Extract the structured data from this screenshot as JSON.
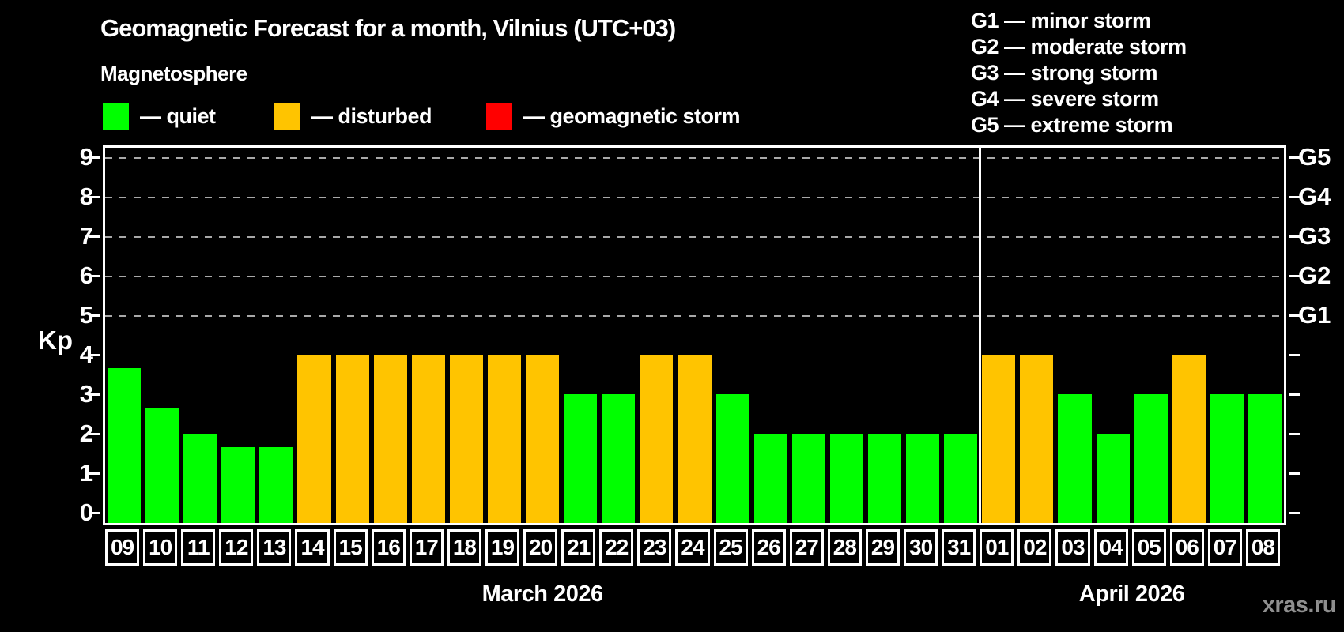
{
  "header": {
    "title": "Geomagnetic Forecast for a month, Vilnius (UTC+03)",
    "subtitle": "Magnetosphere"
  },
  "legend": {
    "items": [
      {
        "key": "quiet",
        "label": "— quiet",
        "color": "#00ff00"
      },
      {
        "key": "disturbed",
        "label": "— disturbed",
        "color": "#ffc400"
      },
      {
        "key": "storm",
        "label": "— geomagnetic storm",
        "color": "#ff0000"
      }
    ]
  },
  "g_scale_legend": {
    "lines": [
      "G1 — minor storm",
      "G2 — moderate storm",
      "G3 — strong storm",
      "G4 — severe storm",
      "G5 — extreme storm"
    ]
  },
  "status_colors": {
    "quiet": "#00ff00",
    "disturbed": "#ffc400",
    "storm": "#ff0000"
  },
  "chart_data": {
    "type": "bar",
    "title": "Geomagnetic Forecast for a month, Vilnius (UTC+03)",
    "ylabel": "Kp",
    "ylim": [
      0,
      9
    ],
    "yticks": [
      0,
      1,
      2,
      3,
      4,
      5,
      6,
      7,
      8,
      9
    ],
    "gridlines_at": [
      5,
      6,
      7,
      8,
      9
    ],
    "right_axis_labels": [
      {
        "kp": 5,
        "label": "G1"
      },
      {
        "kp": 6,
        "label": "G2"
      },
      {
        "kp": 7,
        "label": "G3"
      },
      {
        "kp": 8,
        "label": "G4"
      },
      {
        "kp": 9,
        "label": "G5"
      }
    ],
    "months": [
      {
        "label": "March 2026",
        "days": 23
      },
      {
        "label": "April 2026",
        "days": 8
      }
    ],
    "categories": [
      "09",
      "10",
      "11",
      "12",
      "13",
      "14",
      "15",
      "16",
      "17",
      "18",
      "19",
      "20",
      "21",
      "22",
      "23",
      "24",
      "25",
      "26",
      "27",
      "28",
      "29",
      "30",
      "31",
      "01",
      "02",
      "03",
      "04",
      "05",
      "06",
      "07",
      "08"
    ],
    "bars": [
      {
        "day": "09",
        "kp": 3.67,
        "status": "quiet"
      },
      {
        "day": "10",
        "kp": 2.67,
        "status": "quiet"
      },
      {
        "day": "11",
        "kp": 2.0,
        "status": "quiet"
      },
      {
        "day": "12",
        "kp": 1.67,
        "status": "quiet"
      },
      {
        "day": "13",
        "kp": 1.67,
        "status": "quiet"
      },
      {
        "day": "14",
        "kp": 4.0,
        "status": "disturbed"
      },
      {
        "day": "15",
        "kp": 4.0,
        "status": "disturbed"
      },
      {
        "day": "16",
        "kp": 4.0,
        "status": "disturbed"
      },
      {
        "day": "17",
        "kp": 4.0,
        "status": "disturbed"
      },
      {
        "day": "18",
        "kp": 4.0,
        "status": "disturbed"
      },
      {
        "day": "19",
        "kp": 4.0,
        "status": "disturbed"
      },
      {
        "day": "20",
        "kp": 4.0,
        "status": "disturbed"
      },
      {
        "day": "21",
        "kp": 3.0,
        "status": "quiet"
      },
      {
        "day": "22",
        "kp": 3.0,
        "status": "quiet"
      },
      {
        "day": "23",
        "kp": 4.0,
        "status": "disturbed"
      },
      {
        "day": "24",
        "kp": 4.0,
        "status": "disturbed"
      },
      {
        "day": "25",
        "kp": 3.0,
        "status": "quiet"
      },
      {
        "day": "26",
        "kp": 2.0,
        "status": "quiet"
      },
      {
        "day": "27",
        "kp": 2.0,
        "status": "quiet"
      },
      {
        "day": "28",
        "kp": 2.0,
        "status": "quiet"
      },
      {
        "day": "29",
        "kp": 2.0,
        "status": "quiet"
      },
      {
        "day": "30",
        "kp": 2.0,
        "status": "quiet"
      },
      {
        "day": "31",
        "kp": 2.0,
        "status": "quiet"
      },
      {
        "day": "01",
        "kp": 4.0,
        "status": "disturbed"
      },
      {
        "day": "02",
        "kp": 4.0,
        "status": "disturbed"
      },
      {
        "day": "03",
        "kp": 3.0,
        "status": "quiet"
      },
      {
        "day": "04",
        "kp": 2.0,
        "status": "quiet"
      },
      {
        "day": "05",
        "kp": 3.0,
        "status": "quiet"
      },
      {
        "day": "06",
        "kp": 4.0,
        "status": "disturbed"
      },
      {
        "day": "07",
        "kp": 3.0,
        "status": "quiet"
      },
      {
        "day": "08",
        "kp": 3.0,
        "status": "quiet"
      }
    ]
  },
  "watermark": "xras.ru"
}
